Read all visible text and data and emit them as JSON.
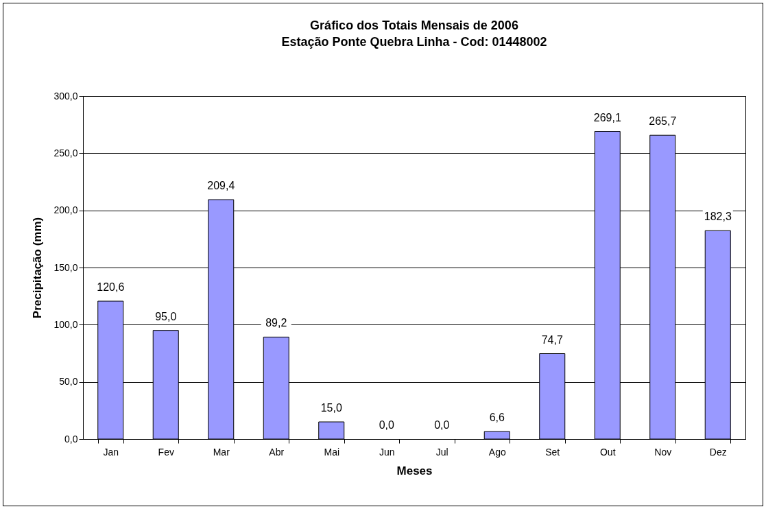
{
  "chart_data": {
    "type": "bar",
    "title": "Gráfico dos Totais Mensais de 2006",
    "subtitle": "Estação Ponte Quebra Linha - Cod: 01448002",
    "xlabel": "Meses",
    "ylabel": "Precipitação (mm)",
    "categories": [
      "Jan",
      "Fev",
      "Mar",
      "Abr",
      "Mai",
      "Jun",
      "Jul",
      "Ago",
      "Set",
      "Out",
      "Nov",
      "Dez"
    ],
    "values": [
      120.6,
      95.0,
      209.4,
      89.2,
      15.0,
      0.0,
      0.0,
      6.6,
      74.7,
      269.1,
      265.7,
      182.3
    ],
    "value_labels": [
      "120,6",
      "95,0",
      "209,4",
      "89,2",
      "15,0",
      "0,0",
      "0,0",
      "6,6",
      "74,7",
      "269,1",
      "265,7",
      "182,3"
    ],
    "color": "#9999ff",
    "ylim": [
      0,
      300
    ],
    "yticks": [
      {
        "value": 0,
        "label": "0,0"
      },
      {
        "value": 50,
        "label": "50,0"
      },
      {
        "value": 100,
        "label": "100,0"
      },
      {
        "value": 150,
        "label": "150,0"
      },
      {
        "value": 200,
        "label": "200,0"
      },
      {
        "value": 250,
        "label": "250,0"
      },
      {
        "value": 300,
        "label": "300,0"
      }
    ],
    "grid": "y"
  }
}
